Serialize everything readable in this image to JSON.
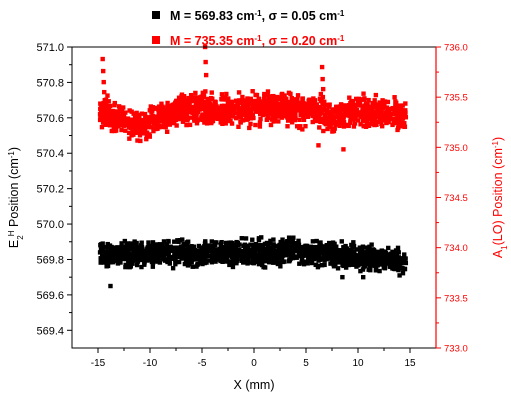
{
  "chart_data": {
    "type": "scatter",
    "xlabel": "X (mm)",
    "ylabel_left_main": "E",
    "ylabel_left_sub": "2",
    "ylabel_left_sup": "H",
    "ylabel_left_rest": " Position (cm",
    "ylabel_left_exp": "-1",
    "ylabel_left_close": ")",
    "ylabel_right_main": "A",
    "ylabel_right_sub": "1",
    "ylabel_right_rest": "(LO) Position (cm",
    "ylabel_right_exp": "-1",
    "ylabel_right_close": ")",
    "xlim": [
      -17.5,
      17.5
    ],
    "ylim_left": [
      569.3,
      571.0
    ],
    "ylim_right": [
      733.0,
      736.0
    ],
    "x_ticks": [
      -15,
      -10,
      -5,
      0,
      5,
      10,
      15
    ],
    "x_tick_labels": [
      "-15",
      "-10",
      "-5",
      "0",
      "5",
      "10",
      "15"
    ],
    "y_left_ticks": [
      569.4,
      569.6,
      569.8,
      570.0,
      570.2,
      570.4,
      570.6,
      570.8,
      571.0
    ],
    "y_left_tick_labels": [
      "569.4",
      "569.6",
      "569.8",
      "570.0",
      "570.2",
      "570.4",
      "570.6",
      "570.8",
      "571.0"
    ],
    "y_right_ticks": [
      733.0,
      733.5,
      734.0,
      734.5,
      735.0,
      735.5,
      736.0
    ],
    "y_right_tick_labels": [
      "733.0",
      "733.5",
      "734.0",
      "734.5",
      "735.0",
      "735.5",
      "736.0"
    ],
    "legend_placement": "top-center",
    "grid": false,
    "series": [
      {
        "axis": "left",
        "color": "#000000",
        "marker": "square",
        "legend_prefix": "M = 569.83 cm",
        "legend_exp1": "-1",
        "legend_mid": ", ",
        "legend_sigma": "σ",
        "legend_value": " = 0.05 cm",
        "legend_exp2": "-1",
        "x": [
          -14.8,
          -14.2,
          -13.5,
          -12.8,
          -12.0,
          -11.2,
          -10.5,
          -9.8,
          -9.0,
          -8.2,
          -7.5,
          -6.8,
          -6.0,
          -5.2,
          -4.5,
          -3.8,
          -3.0,
          -2.2,
          -1.5,
          -0.8,
          0.0,
          0.8,
          1.5,
          2.2,
          3.0,
          3.8,
          4.5,
          5.2,
          6.0,
          6.8,
          7.5,
          8.2,
          9.0,
          9.8,
          10.5,
          11.2,
          12.0,
          12.8,
          13.5,
          14.2,
          14.6
        ],
        "y": [
          569.84,
          569.83,
          569.82,
          569.83,
          569.83,
          569.84,
          569.82,
          569.83,
          569.84,
          569.83,
          569.83,
          569.84,
          569.83,
          569.82,
          569.83,
          569.83,
          569.84,
          569.83,
          569.83,
          569.84,
          569.83,
          569.84,
          569.84,
          569.83,
          569.84,
          569.85,
          569.84,
          569.84,
          569.83,
          569.84,
          569.83,
          569.83,
          569.82,
          569.82,
          569.82,
          569.81,
          569.81,
          569.8,
          569.79,
          569.78,
          569.78
        ],
        "outliers_x": [
          -13.8,
          8.5,
          10.5,
          14.0
        ],
        "outliers_y": [
          569.65,
          569.7,
          569.7,
          569.71
        ],
        "spread": 0.055
      },
      {
        "axis": "right",
        "color": "#ff0000",
        "marker": "square",
        "legend_prefix": "M = 735.35 cm",
        "legend_exp1": "-1",
        "legend_mid": ", ",
        "legend_sigma": "σ",
        "legend_value": " = 0.20 cm",
        "legend_exp2": "-1",
        "x": [
          -14.8,
          -14.2,
          -13.5,
          -12.8,
          -12.0,
          -11.2,
          -10.5,
          -9.8,
          -9.0,
          -8.2,
          -7.5,
          -6.8,
          -6.0,
          -5.2,
          -4.5,
          -3.8,
          -3.0,
          -2.2,
          -1.5,
          -0.8,
          0.0,
          0.8,
          1.5,
          2.2,
          3.0,
          3.8,
          4.5,
          5.2,
          6.0,
          6.8,
          7.5,
          8.2,
          9.0,
          9.8,
          10.5,
          11.2,
          12.0,
          12.8,
          13.5,
          14.2,
          14.6
        ],
        "y": [
          735.33,
          735.36,
          735.25,
          735.28,
          735.2,
          735.24,
          735.18,
          735.26,
          735.3,
          735.33,
          735.35,
          735.37,
          735.38,
          735.4,
          735.36,
          735.38,
          735.37,
          735.39,
          735.38,
          735.36,
          735.38,
          735.4,
          735.39,
          735.38,
          735.41,
          735.37,
          735.36,
          735.38,
          735.37,
          735.32,
          735.3,
          735.33,
          735.35,
          735.37,
          735.36,
          735.35,
          735.34,
          735.35,
          735.33,
          735.32,
          735.3
        ],
        "outliers_x": [
          -14.55,
          -14.5,
          -14.45,
          -14.4,
          -14.35,
          -4.7,
          -4.65,
          -4.6,
          6.55,
          6.6,
          6.65,
          8.6,
          6.2
        ],
        "outliers_y": [
          735.88,
          735.76,
          735.65,
          735.55,
          735.47,
          736.0,
          735.85,
          735.72,
          735.8,
          735.68,
          735.58,
          734.98,
          735.02
        ],
        "spread": 0.12
      }
    ]
  }
}
